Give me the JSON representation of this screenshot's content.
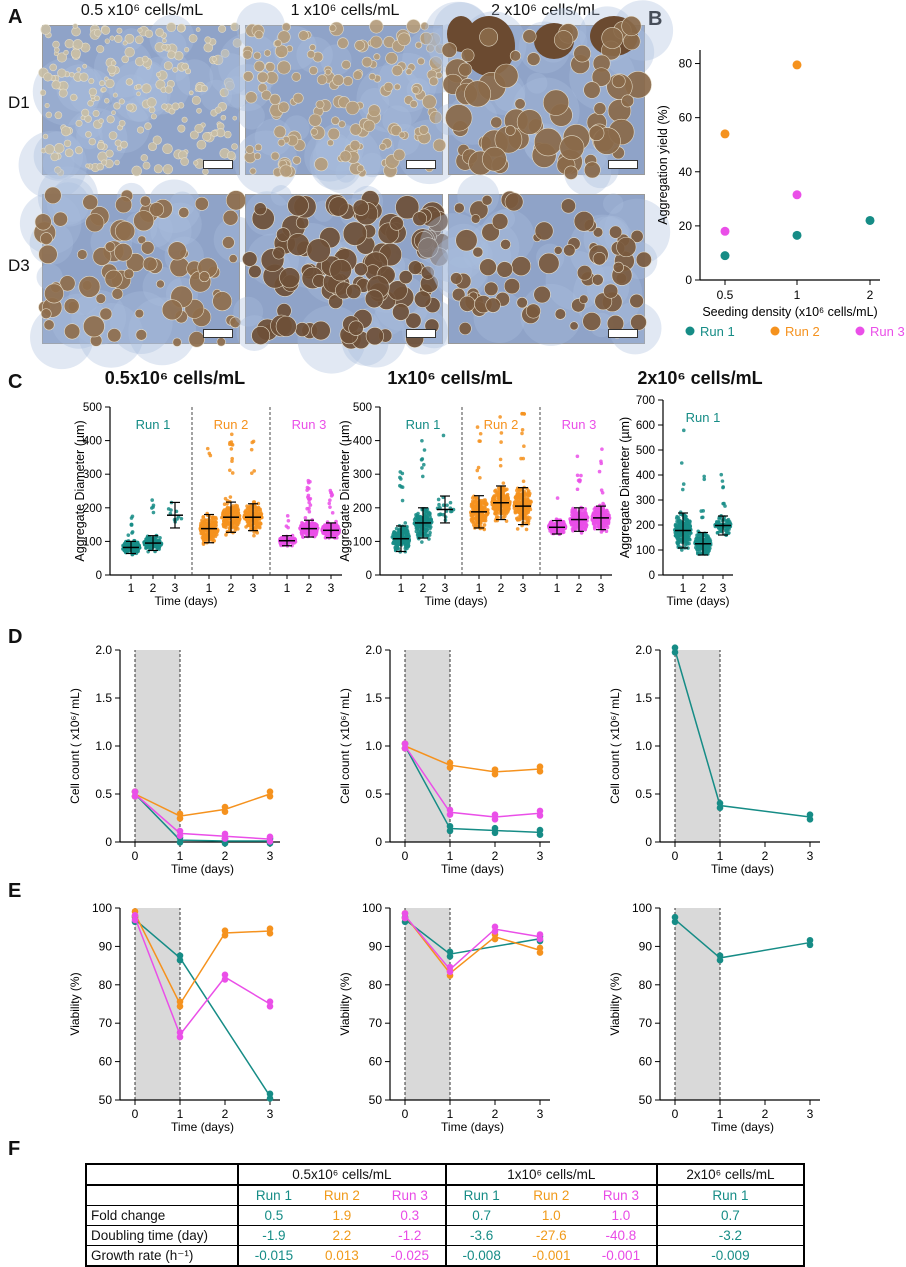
{
  "panels": {
    "a": "A",
    "b": "B",
    "c": "C",
    "d": "D",
    "e": "E",
    "f": "F"
  },
  "colors": {
    "run1": "#168c86",
    "run2": "#f5921e",
    "run3": "#ea4fe8",
    "shade": "#d9d9d9"
  },
  "panelA": {
    "headers": [
      "0.5 x10⁶ cells/mL",
      "1 x10⁶ cells/mL",
      "2 x10⁶ cells/mL"
    ],
    "rows": [
      "D1",
      "D3"
    ]
  },
  "chart_data": [
    {
      "id": "B",
      "type": "scatter",
      "xlabel": "Seeding density (x10⁶ cells/mL)",
      "ylabel": "Aggregation yield (%)",
      "categories": [
        "0.5",
        "1",
        "2"
      ],
      "ylim": [
        0,
        85
      ],
      "yticks": [
        0,
        20,
        40,
        60,
        80
      ],
      "series": [
        {
          "name": "Run 1",
          "color": "#168c86",
          "x": [
            "0.5",
            "1",
            "2"
          ],
          "values": [
            9,
            16.5,
            22
          ]
        },
        {
          "name": "Run 2",
          "color": "#f5921e",
          "x": [
            "0.5",
            "1"
          ],
          "values": [
            54,
            79.5
          ]
        },
        {
          "name": "Run 3",
          "color": "#ea4fe8",
          "x": [
            "0.5",
            "1"
          ],
          "values": [
            18,
            31.5
          ]
        }
      ],
      "legend": [
        "Run 1",
        "Run 2",
        "Run 3"
      ]
    },
    {
      "id": "C1",
      "type": "scatter",
      "title": "0.5x10⁶ cells/mL",
      "xlabel": "Time (days)",
      "ylabel": "Aggregate Diameter (µm)",
      "ylim": [
        0,
        500
      ],
      "yticks": [
        0,
        100,
        200,
        300,
        400,
        500
      ],
      "groups": [
        {
          "run": "Run 1",
          "color": "#168c86",
          "days": [
            1,
            2,
            3
          ],
          "means": [
            82,
            95,
            178
          ],
          "sd": [
            18,
            22,
            38
          ],
          "n": [
            160,
            150,
            10
          ]
        },
        {
          "run": "Run 2",
          "color": "#f5921e",
          "days": [
            1,
            2,
            3
          ],
          "means": [
            138,
            172,
            172
          ],
          "sd": [
            42,
            45,
            40
          ],
          "n": [
            170,
            190,
            190
          ]
        },
        {
          "run": "Run 3",
          "color": "#ea4fe8",
          "days": [
            1,
            2,
            3
          ],
          "means": [
            102,
            138,
            133
          ],
          "sd": [
            15,
            25,
            22
          ],
          "n": [
            90,
            180,
            220
          ]
        }
      ]
    },
    {
      "id": "C2",
      "type": "scatter",
      "title": "1x10⁶ cells/mL",
      "xlabel": "Time (days)",
      "ylabel": "Aggregate Diameter (µm)",
      "ylim": [
        0,
        500
      ],
      "yticks": [
        0,
        100,
        200,
        300,
        400,
        500
      ],
      "groups": [
        {
          "run": "Run 1",
          "color": "#168c86",
          "days": [
            1,
            2,
            3
          ],
          "means": [
            108,
            155,
            195
          ],
          "sd": [
            38,
            45,
            40
          ],
          "n": [
            200,
            160,
            20
          ]
        },
        {
          "run": "Run 2",
          "color": "#f5921e",
          "days": [
            1,
            2,
            3
          ],
          "means": [
            188,
            215,
            205
          ],
          "sd": [
            48,
            50,
            55
          ],
          "n": [
            200,
            200,
            200
          ]
        },
        {
          "run": "Run 3",
          "color": "#ea4fe8",
          "days": [
            1,
            2,
            3
          ],
          "means": [
            142,
            165,
            170
          ],
          "sd": [
            20,
            35,
            35
          ],
          "n": [
            150,
            200,
            200
          ]
        }
      ]
    },
    {
      "id": "C3",
      "type": "scatter",
      "title": "2x10⁶ cells/mL",
      "xlabel": "Time (days)",
      "ylabel": "Aggregate Diameter (µm)",
      "ylim": [
        0,
        700
      ],
      "yticks": [
        0,
        100,
        200,
        300,
        400,
        500,
        600,
        700
      ],
      "groups": [
        {
          "run": "Run 1",
          "color": "#168c86",
          "days": [
            1,
            2,
            3
          ],
          "means": [
            178,
            125,
            198
          ],
          "sd": [
            70,
            45,
            38
          ],
          "n": [
            220,
            180,
            90
          ]
        }
      ]
    },
    {
      "id": "D1",
      "type": "line",
      "xlabel": "Time (days)",
      "ylabel": "Cell count ( x10⁶/ mL)",
      "ylim": [
        0,
        2
      ],
      "yticks": [
        "0",
        "0.5",
        "1.0",
        "1.5",
        "2.0"
      ],
      "xticks": [
        0,
        1,
        2,
        3
      ],
      "series": [
        {
          "name": "Run 1",
          "color": "#168c86",
          "x": [
            0,
            1,
            2,
            3
          ],
          "values": [
            0.5,
            0.02,
            0.01,
            0.01
          ]
        },
        {
          "name": "Run 2",
          "color": "#f5921e",
          "x": [
            0,
            1,
            2,
            3
          ],
          "values": [
            0.5,
            0.27,
            0.34,
            0.5
          ]
        },
        {
          "name": "Run 3",
          "color": "#ea4fe8",
          "x": [
            0,
            1,
            2,
            3
          ],
          "values": [
            0.5,
            0.09,
            0.06,
            0.03
          ]
        }
      ]
    },
    {
      "id": "D2",
      "type": "line",
      "xlabel": "Time (days)",
      "ylabel": "Cell count ( x10⁶/ mL)",
      "ylim": [
        0,
        2
      ],
      "yticks": [
        "0",
        "0.5",
        "1.0",
        "1.5",
        "2.0"
      ],
      "xticks": [
        0,
        1,
        2,
        3
      ],
      "series": [
        {
          "name": "Run 1",
          "color": "#168c86",
          "x": [
            0,
            1,
            2,
            3
          ],
          "values": [
            1.0,
            0.14,
            0.12,
            0.1
          ]
        },
        {
          "name": "Run 2",
          "color": "#f5921e",
          "x": [
            0,
            1,
            2,
            3
          ],
          "values": [
            1.0,
            0.8,
            0.73,
            0.76
          ]
        },
        {
          "name": "Run 3",
          "color": "#ea4fe8",
          "x": [
            0,
            1,
            2,
            3
          ],
          "values": [
            1.0,
            0.31,
            0.26,
            0.3
          ]
        }
      ]
    },
    {
      "id": "D3",
      "type": "line",
      "xlabel": "Time (days)",
      "ylabel": "Cell count ( x10⁶/ mL)",
      "ylim": [
        0,
        2
      ],
      "yticks": [
        "0",
        "0.5",
        "1.0",
        "1.5",
        "2.0"
      ],
      "xticks": [
        0,
        1,
        2,
        3
      ],
      "series": [
        {
          "name": "Run 1",
          "color": "#168c86",
          "x": [
            0,
            1,
            3
          ],
          "values": [
            2.0,
            0.38,
            0.26
          ]
        }
      ]
    },
    {
      "id": "E1",
      "type": "line",
      "xlabel": "Time (days)",
      "ylabel": "Viability (%)",
      "ylim": [
        50,
        100
      ],
      "yticks": [
        "50",
        "60",
        "70",
        "80",
        "90",
        "100"
      ],
      "xticks": [
        0,
        1,
        2,
        3
      ],
      "series": [
        {
          "name": "Run 1",
          "color": "#168c86",
          "x": [
            0,
            1,
            3
          ],
          "values": [
            97,
            87,
            51
          ]
        },
        {
          "name": "Run 2",
          "color": "#f5921e",
          "x": [
            0,
            1,
            2,
            3
          ],
          "values": [
            98.5,
            75,
            93.5,
            94
          ]
        },
        {
          "name": "Run 3",
          "color": "#ea4fe8",
          "x": [
            0,
            1,
            2,
            3
          ],
          "values": [
            97.5,
            67,
            82,
            75
          ]
        }
      ]
    },
    {
      "id": "E2",
      "type": "line",
      "xlabel": "Time (days)",
      "ylabel": "Viability (%)",
      "ylim": [
        50,
        100
      ],
      "yticks": [
        "50",
        "60",
        "70",
        "80",
        "90",
        "100"
      ],
      "xticks": [
        0,
        1,
        2,
        3
      ],
      "series": [
        {
          "name": "Run 1",
          "color": "#168c86",
          "x": [
            0,
            1,
            3
          ],
          "values": [
            97,
            88,
            92
          ]
        },
        {
          "name": "Run 2",
          "color": "#f5921e",
          "x": [
            0,
            1,
            2,
            3
          ],
          "values": [
            98,
            83,
            92.5,
            89
          ]
        },
        {
          "name": "Run 3",
          "color": "#ea4fe8",
          "x": [
            0,
            1,
            2,
            3
          ],
          "values": [
            98,
            84,
            94.5,
            92.5
          ]
        }
      ]
    },
    {
      "id": "E3",
      "type": "line",
      "xlabel": "Time (days)",
      "ylabel": "Viability (%)",
      "ylim": [
        50,
        100
      ],
      "yticks": [
        "50",
        "60",
        "70",
        "80",
        "90",
        "100"
      ],
      "xticks": [
        0,
        1,
        2,
        3
      ],
      "series": [
        {
          "name": "Run 1",
          "color": "#168c86",
          "x": [
            0,
            1,
            3
          ],
          "values": [
            97,
            87,
            91
          ]
        }
      ]
    }
  ],
  "table": {
    "groups": [
      "0.5x10⁶ cells/mL",
      "1x10⁶ cells/mL",
      "2x10⁶ cells/mL"
    ],
    "runs": [
      "Run 1",
      "Run 2",
      "Run 3",
      "Run 1",
      "Run 2",
      "Run 3",
      "Run 1"
    ],
    "rows": [
      {
        "label": "Fold change",
        "values": [
          "0.5",
          "1.9",
          "0.3",
          "0.7",
          "1.0",
          "1.0",
          "0.7"
        ]
      },
      {
        "label": "Doubling time (day)",
        "values": [
          "-1.9",
          "2.2",
          "-1.2",
          "-3.6",
          "-27.6",
          "-40.8",
          "-3.2"
        ]
      },
      {
        "label": "Growth rate (h⁻¹)",
        "values": [
          "-0.015",
          "0.013",
          "-0.025",
          "-0.008",
          "-0.001",
          "-0.001",
          "-0.009"
        ]
      }
    ]
  }
}
